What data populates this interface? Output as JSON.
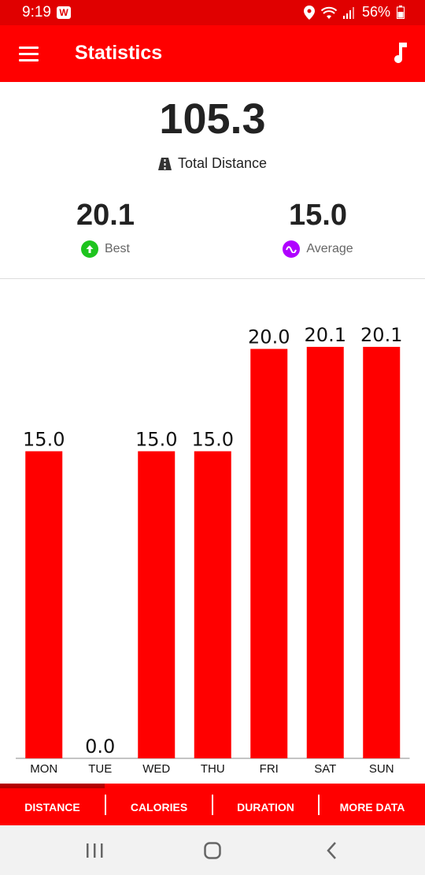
{
  "status_bar": {
    "time": "9:19",
    "app_badge": "W",
    "battery": "56%"
  },
  "app_bar": {
    "title": "Statistics",
    "menu_icon": "hamburger-menu-icon",
    "music_icon": "music-note-icon"
  },
  "summary": {
    "total_value": "105.3",
    "total_label": "Total Distance",
    "total_icon": "road-icon",
    "best_value": "20.1",
    "best_label": "Best",
    "best_icon": "arrow-up-circle-icon",
    "best_color": "#1ec41e",
    "average_value": "15.0",
    "average_label": "Average",
    "average_icon": "wave-circle-icon",
    "average_color": "#b000ff"
  },
  "chart_data": {
    "type": "bar",
    "categories": [
      "MON",
      "TUE",
      "WED",
      "THU",
      "FRI",
      "SAT",
      "SUN"
    ],
    "values": [
      15.0,
      0.0,
      15.0,
      15.0,
      20.0,
      20.1,
      20.1
    ],
    "value_labels": [
      "15.0",
      "0.0",
      "15.0",
      "15.0",
      "20.0",
      "20.1",
      "20.1"
    ],
    "ylim": [
      0,
      20.1
    ],
    "bar_color": "#ff0000",
    "grid": false
  },
  "tabs": [
    {
      "label": "DISTANCE",
      "selected": true
    },
    {
      "label": "CALORIES",
      "selected": false
    },
    {
      "label": "DURATION",
      "selected": false
    },
    {
      "label": "MORE DATA",
      "selected": false
    }
  ],
  "nav_bar": {
    "recents_icon": "recent-apps-icon",
    "home_icon": "home-icon",
    "back_icon": "back-icon"
  }
}
